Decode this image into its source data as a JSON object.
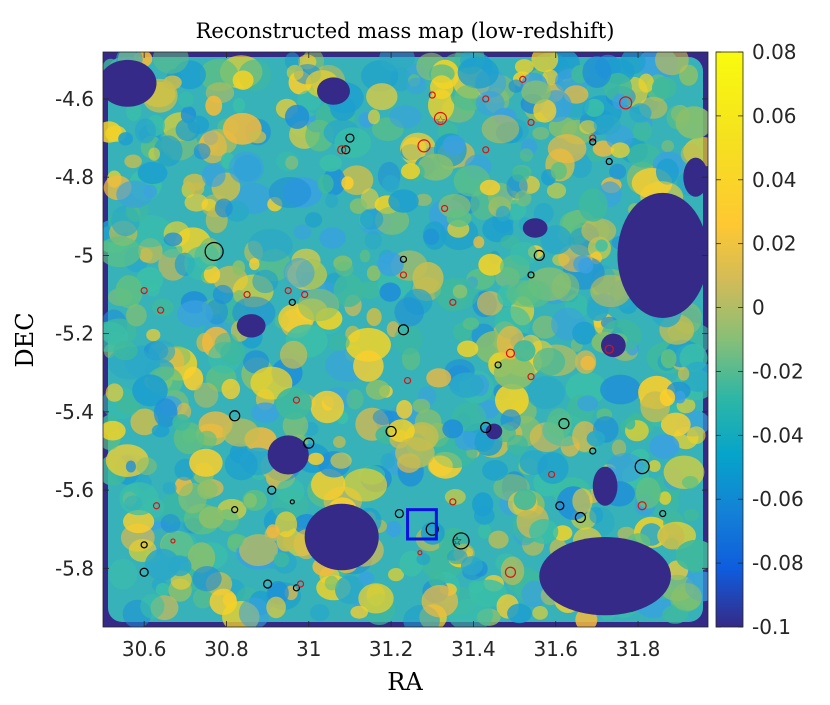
{
  "chart_data": {
    "type": "heatmap",
    "title": "Reconstructed mass map (low-redshift)",
    "xlabel": "RA",
    "ylabel": "DEC",
    "xlim": [
      30.5,
      31.97
    ],
    "ylim": [
      -5.95,
      -4.48
    ],
    "x_ticks": [
      30.6,
      30.8,
      31,
      31.2,
      31.4,
      31.6,
      31.8
    ],
    "x_tick_labels": [
      "30.6",
      "30.8",
      "31",
      "31.2",
      "31.4",
      "31.6",
      "31.8"
    ],
    "y_ticks": [
      -4.6,
      -4.8,
      -5,
      -5.2,
      -5.4,
      -5.6,
      -5.8
    ],
    "y_tick_labels": [
      "-4.6",
      "-4.8",
      "-5",
      "-5.2",
      "-5.4",
      "-5.6",
      "-5.8"
    ],
    "colorbar": {
      "range": [
        -0.1,
        0.08
      ],
      "ticks": [
        0.08,
        0.06,
        0.04,
        0.02,
        0,
        -0.02,
        -0.04,
        -0.06,
        -0.08,
        -0.1
      ],
      "tick_labels": [
        "0.08",
        "0.06",
        "0.04",
        "0.02",
        "0",
        "-0.02",
        "-0.04",
        "-0.06",
        "-0.08",
        "-0.1"
      ],
      "colormap": "parula"
    },
    "masked_regions": [
      {
        "ra": 31.08,
        "dec": -5.72,
        "rx": 0.09,
        "ry": 0.085
      },
      {
        "ra": 31.72,
        "dec": -5.82,
        "rx": 0.16,
        "ry": 0.1
      },
      {
        "ra": 31.86,
        "dec": -5.0,
        "rx": 0.11,
        "ry": 0.16
      },
      {
        "ra": 30.56,
        "dec": -4.56,
        "rx": 0.07,
        "ry": 0.06
      },
      {
        "ra": 31.06,
        "dec": -4.58,
        "rx": 0.04,
        "ry": 0.035
      },
      {
        "ra": 30.95,
        "dec": -5.51,
        "rx": 0.05,
        "ry": 0.05
      },
      {
        "ra": 31.72,
        "dec": -5.59,
        "rx": 0.03,
        "ry": 0.05
      },
      {
        "ra": 31.55,
        "dec": -4.93,
        "rx": 0.03,
        "ry": 0.025
      },
      {
        "ra": 30.86,
        "dec": -5.18,
        "rx": 0.035,
        "ry": 0.03
      },
      {
        "ra": 31.74,
        "dec": -5.23,
        "rx": 0.03,
        "ry": 0.03
      },
      {
        "ra": 31.45,
        "dec": -5.45,
        "rx": 0.02,
        "ry": 0.02
      },
      {
        "ra": 31.94,
        "dec": -4.8,
        "rx": 0.03,
        "ry": 0.05
      }
    ],
    "cluster_markers": [
      {
        "ra": 30.77,
        "dec": -4.99,
        "r": 9,
        "color": "black"
      },
      {
        "ra": 31.1,
        "dec": -4.7,
        "r": 4,
        "color": "black"
      },
      {
        "ra": 31.09,
        "dec": -4.73,
        "r": 4,
        "color": "black"
      },
      {
        "ra": 31.08,
        "dec": -4.73,
        "r": 4,
        "color": "red"
      },
      {
        "ra": 31.32,
        "dec": -4.65,
        "r": 6,
        "color": "red"
      },
      {
        "ra": 31.3,
        "dec": -4.59,
        "r": 3,
        "color": "red"
      },
      {
        "ra": 31.28,
        "dec": -4.72,
        "r": 6,
        "color": "red"
      },
      {
        "ra": 31.43,
        "dec": -4.6,
        "r": 3,
        "color": "red"
      },
      {
        "ra": 31.52,
        "dec": -4.55,
        "r": 3,
        "color": "red"
      },
      {
        "ra": 31.54,
        "dec": -4.66,
        "r": 3,
        "color": "red"
      },
      {
        "ra": 31.43,
        "dec": -4.73,
        "r": 3,
        "color": "red"
      },
      {
        "ra": 31.77,
        "dec": -4.61,
        "r": 6,
        "color": "red"
      },
      {
        "ra": 31.69,
        "dec": -4.7,
        "r": 3,
        "color": "red"
      },
      {
        "ra": 31.69,
        "dec": -4.71,
        "r": 3,
        "color": "black"
      },
      {
        "ra": 31.73,
        "dec": -4.76,
        "r": 3,
        "color": "black"
      },
      {
        "ra": 31.33,
        "dec": -4.88,
        "r": 3,
        "color": "red"
      },
      {
        "ra": 31.23,
        "dec": -5.01,
        "r": 3,
        "color": "black"
      },
      {
        "ra": 31.23,
        "dec": -5.05,
        "r": 3,
        "color": "red"
      },
      {
        "ra": 31.56,
        "dec": -5.0,
        "r": 5,
        "color": "black"
      },
      {
        "ra": 31.54,
        "dec": -5.05,
        "r": 3,
        "color": "black"
      },
      {
        "ra": 30.6,
        "dec": -5.09,
        "r": 3,
        "color": "red"
      },
      {
        "ra": 30.64,
        "dec": -5.14,
        "r": 3,
        "color": "red"
      },
      {
        "ra": 30.85,
        "dec": -5.1,
        "r": 3,
        "color": "red"
      },
      {
        "ra": 30.95,
        "dec": -5.09,
        "r": 3,
        "color": "red"
      },
      {
        "ra": 30.96,
        "dec": -5.12,
        "r": 3,
        "color": "black"
      },
      {
        "ra": 30.99,
        "dec": -5.1,
        "r": 3,
        "color": "red"
      },
      {
        "ra": 31.35,
        "dec": -5.12,
        "r": 3,
        "color": "red"
      },
      {
        "ra": 31.23,
        "dec": -5.19,
        "r": 5,
        "color": "black"
      },
      {
        "ra": 31.49,
        "dec": -5.25,
        "r": 4,
        "color": "red"
      },
      {
        "ra": 31.73,
        "dec": -5.24,
        "r": 4,
        "color": "red"
      },
      {
        "ra": 31.46,
        "dec": -5.28,
        "r": 3,
        "color": "black"
      },
      {
        "ra": 31.24,
        "dec": -5.32,
        "r": 3,
        "color": "red"
      },
      {
        "ra": 31.54,
        "dec": -5.31,
        "r": 3,
        "color": "red"
      },
      {
        "ra": 30.97,
        "dec": -5.37,
        "r": 3,
        "color": "red"
      },
      {
        "ra": 30.82,
        "dec": -5.41,
        "r": 5,
        "color": "black"
      },
      {
        "ra": 31.0,
        "dec": -5.48,
        "r": 5,
        "color": "black"
      },
      {
        "ra": 31.2,
        "dec": -5.45,
        "r": 5,
        "color": "black"
      },
      {
        "ra": 31.43,
        "dec": -5.44,
        "r": 5,
        "color": "black"
      },
      {
        "ra": 31.62,
        "dec": -5.43,
        "r": 5,
        "color": "black"
      },
      {
        "ra": 31.69,
        "dec": -5.5,
        "r": 3,
        "color": "black"
      },
      {
        "ra": 31.81,
        "dec": -5.54,
        "r": 7,
        "color": "black"
      },
      {
        "ra": 31.59,
        "dec": -5.56,
        "r": 3,
        "color": "red"
      },
      {
        "ra": 30.91,
        "dec": -5.6,
        "r": 4,
        "color": "black"
      },
      {
        "ra": 30.96,
        "dec": -5.63,
        "r": 2,
        "color": "black"
      },
      {
        "ra": 30.82,
        "dec": -5.65,
        "r": 3,
        "color": "black"
      },
      {
        "ra": 30.63,
        "dec": -5.64,
        "r": 3,
        "color": "red"
      },
      {
        "ra": 31.22,
        "dec": -5.66,
        "r": 4,
        "color": "black"
      },
      {
        "ra": 31.35,
        "dec": -5.63,
        "r": 3,
        "color": "red"
      },
      {
        "ra": 31.61,
        "dec": -5.64,
        "r": 4,
        "color": "black"
      },
      {
        "ra": 31.66,
        "dec": -5.67,
        "r": 5,
        "color": "black"
      },
      {
        "ra": 31.81,
        "dec": -5.64,
        "r": 4,
        "color": "red"
      },
      {
        "ra": 31.86,
        "dec": -5.66,
        "r": 3,
        "color": "black"
      },
      {
        "ra": 31.3,
        "dec": -5.7,
        "r": 6,
        "color": "black"
      },
      {
        "ra": 31.37,
        "dec": -5.73,
        "r": 8,
        "color": "black"
      },
      {
        "ra": 30.6,
        "dec": -5.74,
        "r": 3,
        "color": "black"
      },
      {
        "ra": 30.67,
        "dec": -5.73,
        "r": 2,
        "color": "red"
      },
      {
        "ra": 31.27,
        "dec": -5.76,
        "r": 2,
        "color": "red"
      },
      {
        "ra": 30.6,
        "dec": -5.81,
        "r": 4,
        "color": "black"
      },
      {
        "ra": 31.49,
        "dec": -5.81,
        "r": 5,
        "color": "red"
      },
      {
        "ra": 30.9,
        "dec": -5.84,
        "r": 4,
        "color": "black"
      },
      {
        "ra": 30.97,
        "dec": -5.85,
        "r": 3,
        "color": "black"
      },
      {
        "ra": 30.98,
        "dec": -5.84,
        "r": 3,
        "color": "red"
      }
    ],
    "star_markers": [
      {
        "ra": 31.32,
        "dec": -4.655,
        "color": "red"
      },
      {
        "ra": 31.36,
        "dec": -5.73,
        "color": "black"
      }
    ],
    "highlight_box": {
      "ra_min": 31.24,
      "ra_max": 31.31,
      "dec_min": -5.725,
      "dec_max": -5.65,
      "color": "#1010e0"
    }
  }
}
